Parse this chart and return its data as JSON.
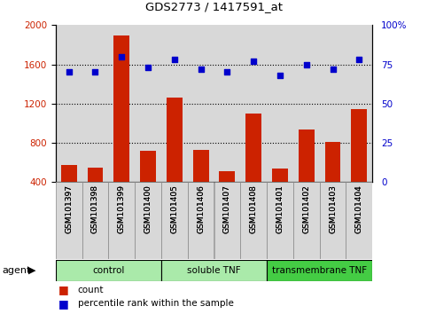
{
  "title": "GDS2773 / 1417591_at",
  "samples": [
    "GSM101397",
    "GSM101398",
    "GSM101399",
    "GSM101400",
    "GSM101405",
    "GSM101406",
    "GSM101407",
    "GSM101408",
    "GSM101401",
    "GSM101402",
    "GSM101403",
    "GSM101404"
  ],
  "counts": [
    575,
    545,
    1890,
    720,
    1260,
    730,
    510,
    1100,
    535,
    940,
    810,
    1140
  ],
  "percentiles": [
    70,
    70,
    80,
    73,
    78,
    72,
    70,
    77,
    68,
    75,
    72,
    78
  ],
  "groups": [
    {
      "label": "control",
      "start": 0,
      "end": 4,
      "color": "#aaeaaa"
    },
    {
      "label": "soluble TNF",
      "start": 4,
      "end": 8,
      "color": "#aaeaaa"
    },
    {
      "label": "transmembrane TNF",
      "start": 8,
      "end": 12,
      "color": "#44cc44"
    }
  ],
  "bar_color": "#cc2200",
  "dot_color": "#0000cc",
  "ylim_left": [
    400,
    2000
  ],
  "ylim_right": [
    0,
    100
  ],
  "yticks_left": [
    400,
    800,
    1200,
    1600,
    2000
  ],
  "yticks_right": [
    0,
    25,
    50,
    75,
    100
  ],
  "yticklabels_right": [
    "0",
    "25",
    "50",
    "75",
    "100%"
  ],
  "grid_values": [
    800,
    1200,
    1600
  ],
  "bg_color": "#d8d8d8",
  "legend_count_color": "#cc2200",
  "legend_pct_color": "#0000cc",
  "figsize": [
    4.83,
    3.54
  ],
  "dpi": 100
}
